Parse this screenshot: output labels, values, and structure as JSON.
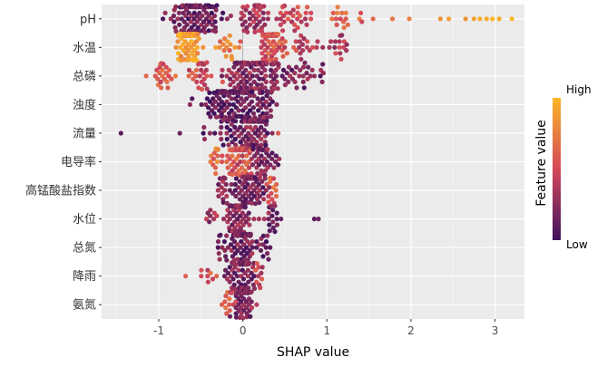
{
  "chart_data": {
    "type": "scatter",
    "subtype": "shap-beeswarm",
    "xlabel": "SHAP value",
    "xlim": [
      -1.68,
      3.35
    ],
    "x_ticks": [
      "-1",
      "0",
      "1",
      "2",
      "3"
    ],
    "x_tick_values": [
      -1,
      0,
      1,
      2,
      3
    ],
    "features": [
      "pH",
      "水温",
      "总磷",
      "浊度",
      "流量",
      "电导率",
      "高锰酸盐指数",
      "水位",
      "总氮",
      "降雨",
      "氨氮"
    ],
    "legend": {
      "title": "Feature value",
      "high_label": "High",
      "low_label": "Low",
      "color_low": "#3e115d",
      "color_mid": "#d4485a",
      "color_high": "#fbb527"
    },
    "grid": true,
    "zero_line": true,
    "panel_background": "#ebebeb",
    "distributions": [
      {
        "feature": "pH",
        "clusters": [
          {
            "center": -0.55,
            "spread": 0.28,
            "n": 140,
            "fv": 0.15
          },
          {
            "center": 0.15,
            "spread": 0.18,
            "n": 45,
            "fv": 0.35
          },
          {
            "center": 0.6,
            "spread": 0.25,
            "n": 30,
            "fv": 0.45
          },
          {
            "center": 1.2,
            "spread": 0.2,
            "n": 16,
            "fv": 0.6
          }
        ],
        "outliers": [
          {
            "x": -0.95,
            "fv": 0.05
          },
          {
            "x": 1.55,
            "fv": 0.65
          },
          {
            "x": 1.78,
            "fv": 0.7
          },
          {
            "x": 1.98,
            "fv": 0.75
          },
          {
            "x": 2.35,
            "fv": 0.85
          },
          {
            "x": 2.45,
            "fv": 0.9
          },
          {
            "x": 2.65,
            "fv": 0.85
          },
          {
            "x": 2.75,
            "fv": 0.9
          },
          {
            "x": 2.82,
            "fv": 0.95
          },
          {
            "x": 2.9,
            "fv": 0.95
          },
          {
            "x": 2.97,
            "fv": 1.0
          },
          {
            "x": 3.05,
            "fv": 0.95
          },
          {
            "x": 3.2,
            "fv": 1.0
          }
        ]
      },
      {
        "feature": "水温",
        "clusters": [
          {
            "center": -0.65,
            "spread": 0.1,
            "n": 130,
            "fv": 0.9
          },
          {
            "center": 0.35,
            "spread": 0.12,
            "n": 80,
            "fv": 0.55
          },
          {
            "center": -0.15,
            "spread": 0.15,
            "n": 16,
            "fv": 0.75
          },
          {
            "center": 0.75,
            "spread": 0.18,
            "n": 18,
            "fv": 0.45
          },
          {
            "center": 1.15,
            "spread": 0.1,
            "n": 14,
            "fv": 0.4
          }
        ],
        "outliers": [
          {
            "x": 0.95,
            "fv": 0.3
          },
          {
            "x": -0.2,
            "fv": 0.85
          }
        ]
      },
      {
        "feature": "总磷",
        "clusters": [
          {
            "center": 0.15,
            "spread": 0.3,
            "n": 120,
            "fv": 0.25
          },
          {
            "center": -0.95,
            "spread": 0.12,
            "n": 22,
            "fv": 0.6
          },
          {
            "center": -0.5,
            "spread": 0.15,
            "n": 28,
            "fv": 0.5
          },
          {
            "center": 0.7,
            "spread": 0.2,
            "n": 28,
            "fv": 0.2
          }
        ],
        "outliers": [
          {
            "x": 0.95,
            "fv": 0.1
          },
          {
            "x": -1.15,
            "fv": 0.65
          }
        ]
      },
      {
        "feature": "浊度",
        "clusters": [
          {
            "center": -0.1,
            "spread": 0.33,
            "n": 150,
            "fv": 0.1
          },
          {
            "center": 0.3,
            "spread": 0.12,
            "n": 25,
            "fv": 0.2
          }
        ],
        "outliers": []
      },
      {
        "feature": "流量",
        "clusters": [
          {
            "center": -0.1,
            "spread": 0.35,
            "n": 55,
            "fv": 0.15
          },
          {
            "center": 0.15,
            "spread": 0.12,
            "n": 70,
            "fv": 0.2
          }
        ],
        "outliers": [
          {
            "x": -1.45,
            "fv": 0.1
          },
          {
            "x": -0.75,
            "fv": 0.15
          },
          {
            "x": 0.42,
            "fv": 0.6
          }
        ]
      },
      {
        "feature": "电导率",
        "clusters": [
          {
            "center": -0.05,
            "spread": 0.15,
            "n": 80,
            "fv": 0.55
          },
          {
            "center": 0.25,
            "spread": 0.15,
            "n": 50,
            "fv": 0.2
          },
          {
            "center": -0.35,
            "spread": 0.06,
            "n": 12,
            "fv": 0.7
          }
        ],
        "outliers": []
      },
      {
        "feature": "高锰酸盐指数",
        "clusters": [
          {
            "center": 0.08,
            "spread": 0.18,
            "n": 90,
            "fv": 0.2
          },
          {
            "center": 0.35,
            "spread": 0.06,
            "n": 14,
            "fv": 0.6
          },
          {
            "center": -0.2,
            "spread": 0.08,
            "n": 20,
            "fv": 0.25
          }
        ],
        "outliers": []
      },
      {
        "feature": "水位",
        "clusters": [
          {
            "center": -0.05,
            "spread": 0.15,
            "n": 60,
            "fv": 0.25
          },
          {
            "center": 0.35,
            "spread": 0.12,
            "n": 18,
            "fv": 0.2
          },
          {
            "center": -0.4,
            "spread": 0.06,
            "n": 8,
            "fv": 0.3
          }
        ],
        "outliers": [
          {
            "x": 0.85,
            "fv": 0.1
          },
          {
            "x": 0.9,
            "fv": 0.15
          }
        ]
      },
      {
        "feature": "总氮",
        "clusters": [
          {
            "center": 0.0,
            "spread": 0.15,
            "n": 80,
            "fv": 0.2
          },
          {
            "center": 0.3,
            "spread": 0.08,
            "n": 10,
            "fv": 0.15
          },
          {
            "center": -0.25,
            "spread": 0.05,
            "n": 10,
            "fv": 0.2
          }
        ],
        "outliers": []
      },
      {
        "feature": "降雨",
        "clusters": [
          {
            "center": 0.0,
            "spread": 0.15,
            "n": 80,
            "fv": 0.2
          },
          {
            "center": -0.4,
            "spread": 0.08,
            "n": 8,
            "fv": 0.55
          },
          {
            "center": 0.22,
            "spread": 0.08,
            "n": 10,
            "fv": 0.45
          }
        ],
        "outliers": [
          {
            "x": -0.68,
            "fv": 0.6
          }
        ]
      },
      {
        "feature": "氨氮",
        "clusters": [
          {
            "center": 0.0,
            "spread": 0.12,
            "n": 75,
            "fv": 0.25
          },
          {
            "center": -0.15,
            "spread": 0.08,
            "n": 15,
            "fv": 0.55
          }
        ],
        "outliers": [
          {
            "x": -0.25,
            "fv": 0.6
          }
        ]
      }
    ]
  }
}
